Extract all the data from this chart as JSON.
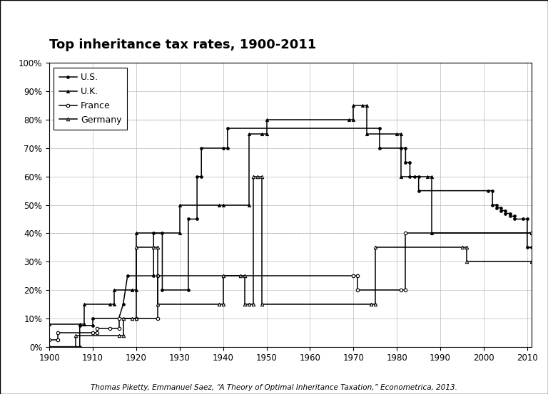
{
  "title": "Top inheritance tax rates, 1900-2011",
  "caption": "Thomas Piketty, Emmanuel Saez, “A Theory of Optimal Inheritance Taxation,” Econometrica, 2013.",
  "xlim": [
    1900,
    2011
  ],
  "ylim": [
    0,
    1.0
  ],
  "yticks": [
    0.0,
    0.1,
    0.2,
    0.3,
    0.4,
    0.5,
    0.6,
    0.7,
    0.8,
    0.9,
    1.0
  ],
  "xticks": [
    1900,
    1910,
    1920,
    1930,
    1940,
    1950,
    1960,
    1970,
    1980,
    1990,
    2000,
    2010
  ],
  "us_data": [
    [
      1900,
      0.0
    ],
    [
      1907,
      0.0
    ],
    [
      1907,
      0.075
    ],
    [
      1910,
      0.075
    ],
    [
      1910,
      0.1
    ],
    [
      1916,
      0.1
    ],
    [
      1917,
      0.15
    ],
    [
      1918,
      0.25
    ],
    [
      1924,
      0.25
    ],
    [
      1924,
      0.4
    ],
    [
      1926,
      0.4
    ],
    [
      1926,
      0.2
    ],
    [
      1932,
      0.2
    ],
    [
      1932,
      0.45
    ],
    [
      1934,
      0.45
    ],
    [
      1934,
      0.6
    ],
    [
      1935,
      0.6
    ],
    [
      1935,
      0.7
    ],
    [
      1940,
      0.7
    ],
    [
      1941,
      0.7
    ],
    [
      1941,
      0.77
    ],
    [
      1976,
      0.77
    ],
    [
      1976,
      0.7
    ],
    [
      1981,
      0.7
    ],
    [
      1982,
      0.7
    ],
    [
      1982,
      0.65
    ],
    [
      1983,
      0.65
    ],
    [
      1983,
      0.6
    ],
    [
      1984,
      0.6
    ],
    [
      1985,
      0.6
    ],
    [
      1985,
      0.55
    ],
    [
      2001,
      0.55
    ],
    [
      2002,
      0.55
    ],
    [
      2002,
      0.5
    ],
    [
      2003,
      0.5
    ],
    [
      2003,
      0.49
    ],
    [
      2004,
      0.49
    ],
    [
      2004,
      0.48
    ],
    [
      2005,
      0.48
    ],
    [
      2005,
      0.47
    ],
    [
      2006,
      0.47
    ],
    [
      2006,
      0.46
    ],
    [
      2007,
      0.46
    ],
    [
      2007,
      0.45
    ],
    [
      2009,
      0.45
    ],
    [
      2010,
      0.45
    ],
    [
      2010,
      0.35
    ],
    [
      2011,
      0.35
    ]
  ],
  "uk_data": [
    [
      1900,
      0.08
    ],
    [
      1907,
      0.08
    ],
    [
      1908,
      0.08
    ],
    [
      1908,
      0.15
    ],
    [
      1914,
      0.15
    ],
    [
      1915,
      0.15
    ],
    [
      1915,
      0.2
    ],
    [
      1919,
      0.2
    ],
    [
      1920,
      0.2
    ],
    [
      1920,
      0.4
    ],
    [
      1930,
      0.4
    ],
    [
      1930,
      0.5
    ],
    [
      1939,
      0.5
    ],
    [
      1940,
      0.5
    ],
    [
      1946,
      0.5
    ],
    [
      1946,
      0.75
    ],
    [
      1949,
      0.75
    ],
    [
      1950,
      0.75
    ],
    [
      1950,
      0.8
    ],
    [
      1969,
      0.8
    ],
    [
      1970,
      0.8
    ],
    [
      1970,
      0.85
    ],
    [
      1972,
      0.85
    ],
    [
      1973,
      0.85
    ],
    [
      1973,
      0.75
    ],
    [
      1980,
      0.75
    ],
    [
      1981,
      0.75
    ],
    [
      1981,
      0.6
    ],
    [
      1987,
      0.6
    ],
    [
      1988,
      0.6
    ],
    [
      1988,
      0.4
    ],
    [
      2011,
      0.4
    ]
  ],
  "france_data": [
    [
      1900,
      0.025
    ],
    [
      1902,
      0.025
    ],
    [
      1902,
      0.05
    ],
    [
      1910,
      0.05
    ],
    [
      1911,
      0.05
    ],
    [
      1911,
      0.065
    ],
    [
      1914,
      0.065
    ],
    [
      1916,
      0.065
    ],
    [
      1916,
      0.1
    ],
    [
      1920,
      0.1
    ],
    [
      1925,
      0.1
    ],
    [
      1925,
      0.25
    ],
    [
      1970,
      0.25
    ],
    [
      1971,
      0.25
    ],
    [
      1971,
      0.2
    ],
    [
      1981,
      0.2
    ],
    [
      1982,
      0.2
    ],
    [
      1982,
      0.4
    ],
    [
      2011,
      0.4
    ]
  ],
  "germany_data": [
    [
      1900,
      0.0
    ],
    [
      1906,
      0.0
    ],
    [
      1906,
      0.04
    ],
    [
      1916,
      0.04
    ],
    [
      1917,
      0.04
    ],
    [
      1917,
      0.1
    ],
    [
      1919,
      0.1
    ],
    [
      1920,
      0.1
    ],
    [
      1920,
      0.35
    ],
    [
      1924,
      0.35
    ],
    [
      1925,
      0.35
    ],
    [
      1925,
      0.15
    ],
    [
      1939,
      0.15
    ],
    [
      1940,
      0.15
    ],
    [
      1940,
      0.25
    ],
    [
      1944,
      0.25
    ],
    [
      1945,
      0.25
    ],
    [
      1945,
      0.15
    ],
    [
      1946,
      0.15
    ],
    [
      1947,
      0.15
    ],
    [
      1947,
      0.6
    ],
    [
      1948,
      0.6
    ],
    [
      1949,
      0.6
    ],
    [
      1949,
      0.15
    ],
    [
      1974,
      0.15
    ],
    [
      1975,
      0.15
    ],
    [
      1975,
      0.35
    ],
    [
      1995,
      0.35
    ],
    [
      1996,
      0.35
    ],
    [
      1996,
      0.3
    ],
    [
      2011,
      0.3
    ]
  ],
  "background_color": "#ffffff",
  "line_color": "#000000",
  "grid_color": "#bbbbbb"
}
